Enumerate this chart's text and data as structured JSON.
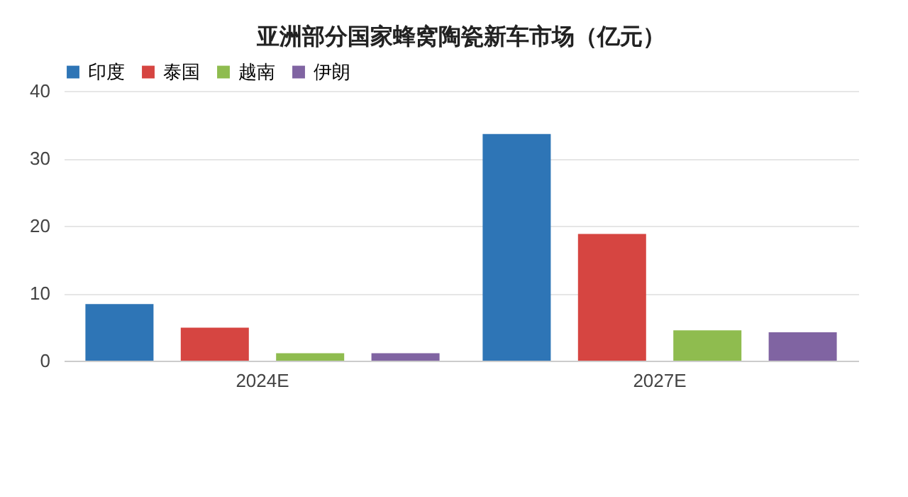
{
  "chart_data": {
    "type": "bar",
    "title": "亚洲部分国家蜂窝陶瓷新车市场（亿元）",
    "categories": [
      "2024E",
      "2027E"
    ],
    "series": [
      {
        "name": "印度",
        "color": "#2e75b6",
        "values": [
          8.4,
          33.6
        ]
      },
      {
        "name": "泰国",
        "color": "#d64541",
        "values": [
          4.9,
          18.8
        ]
      },
      {
        "name": "越南",
        "color": "#8fbc4f",
        "values": [
          1.1,
          4.5
        ]
      },
      {
        "name": "伊朗",
        "color": "#8064a2",
        "values": [
          1.1,
          4.2
        ]
      }
    ],
    "ylim": [
      0,
      40
    ],
    "yticks": [
      0,
      10,
      20,
      30,
      40
    ],
    "grid": "y",
    "legend": "top"
  }
}
